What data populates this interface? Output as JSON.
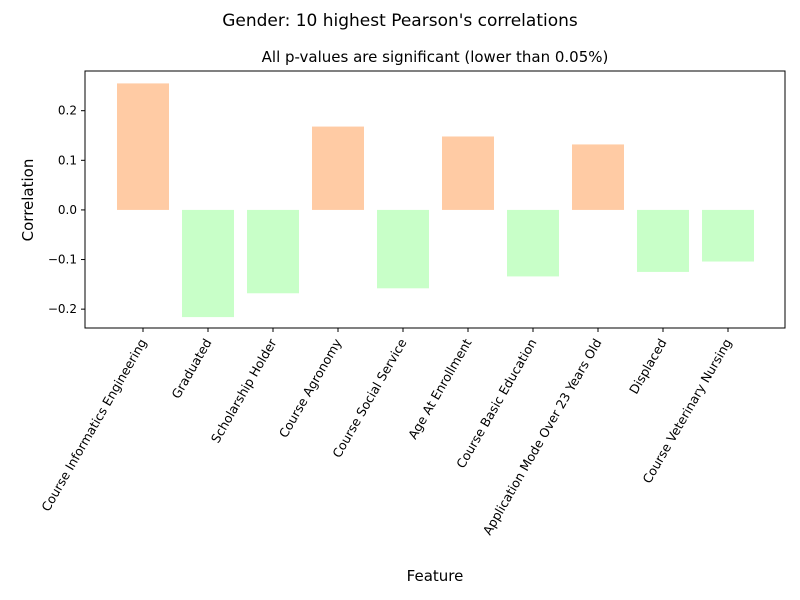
{
  "chart_data": {
    "type": "bar",
    "suptitle": "Gender: 10 highest Pearson's correlations",
    "title": "All p-values are significant (lower than 0.05%)",
    "xlabel": "Feature",
    "ylabel": "Correlation",
    "categories": [
      "Course Informatics Engineering",
      "Graduated",
      "Scholarship Holder",
      "Course Agronomy",
      "Course Social Service",
      "Age At Enrollment",
      "Course Basic Education",
      "Application Mode Over 23 Years Old",
      "Displaced",
      "Course Veterinary Nursing"
    ],
    "values": [
      0.255,
      -0.216,
      -0.168,
      0.168,
      -0.158,
      0.148,
      -0.134,
      0.132,
      -0.125,
      -0.104
    ],
    "ylim": [
      -0.238,
      0.28
    ],
    "yticks": [
      -0.2,
      -0.1,
      0.0,
      0.1,
      0.2
    ],
    "ytick_labels": [
      "−0.2",
      "−0.1",
      "0.0",
      "0.1",
      "0.2"
    ],
    "grid": false,
    "colors": {
      "positive": "#ffcba4",
      "negative": "#c8ffc8"
    }
  }
}
